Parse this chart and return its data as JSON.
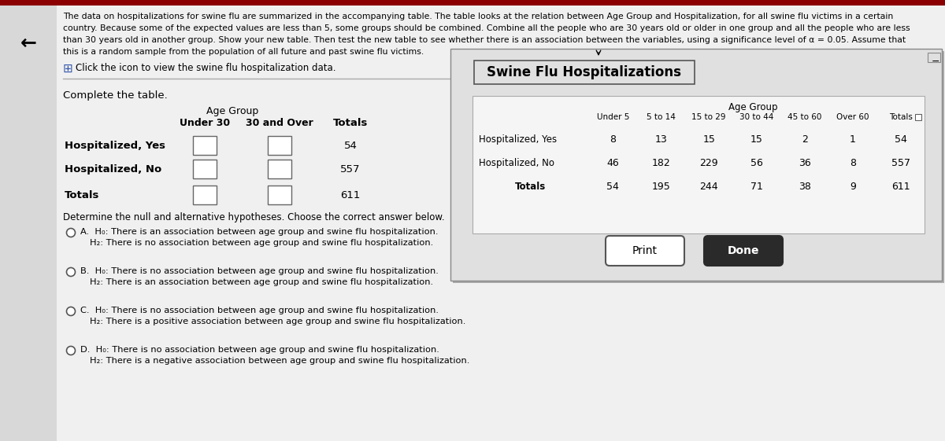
{
  "bg_color": "#c8c8c8",
  "left_panel_color": "#f0f0f0",
  "header_text_line1": "The data on hospitalizations for swine flu are summarized in the accompanying table. The table looks at the relation between Age Group and Hospitalization, for all swine flu victims in a certain",
  "header_text_line2": "country. Because some of the expected values are less than 5, some groups should be combined. Combine all the people who are 30 years old or older in one group and all the people who are less",
  "header_text_line3": "than 30 years old in another group. Show your new table. Then test the new table to see whether there is an association between the variables, using a significance level of α = 0.05. Assume that",
  "header_text_line4": "this is a random sample from the population of all future and past swine flu victims.",
  "icon_text": "Click the icon to view the swine flu hospitalization data.",
  "complete_table_label": "Complete the table.",
  "age_group_label": "Age Group",
  "under30_label": "Under 30",
  "over30_label": "30 and Over",
  "totals_label": "Totals",
  "hosp_yes_label": "Hospitalized, Yes",
  "hosp_no_label": "Hospitalized, No",
  "totals_row_label": "Totals",
  "total_yes": "54",
  "total_no": "557",
  "total_all": "611",
  "determine_text": "Determine the null and alternative hypotheses. Choose the correct answer below.",
  "optA_letter": "A.",
  "optA_h0": "H₀: There is an association between age group and swine flu hospitalization.",
  "optA_ha": "H₂: There is no association between age group and swine flu hospitalization.",
  "optB_letter": "B.",
  "optB_h0": "H₀: There is no association between age group and swine flu hospitalization.",
  "optB_ha": "H₂: There is an association between age group and swine flu hospitalization.",
  "optC_letter": "C.",
  "optC_h0": "H₀: There is no association between age group and swine flu hospitalization.",
  "optC_ha": "H₂: There is a positive association between age group and swine flu hospitalization.",
  "optD_letter": "D.",
  "optD_h0": "H₀: There is no association between age group and swine flu hospitalization.",
  "optD_ha": "H₂: There is a negative association between age group and swine flu hospitalization.",
  "popup_title": "Swine Flu Hospitalizations",
  "popup_bg": "#e0e0e0",
  "popup_inner_bg": "#f5f5f5",
  "popup_col_headers": [
    "Under 5",
    "5 to 14",
    "15 to 29",
    "30 to 44",
    "45 to 60",
    "Over 60",
    "Totals"
  ],
  "popup_row_labels": [
    "Hospitalized, Yes",
    "Hospitalized, No",
    "Totals"
  ],
  "popup_data": [
    [
      8,
      13,
      15,
      15,
      2,
      1,
      54
    ],
    [
      46,
      182,
      229,
      56,
      36,
      8,
      557
    ],
    [
      54,
      195,
      244,
      71,
      38,
      9,
      611
    ]
  ],
  "print_btn": "Print",
  "done_btn": "Done",
  "top_bar_color": "#8b0000",
  "top_bar_height": 7
}
